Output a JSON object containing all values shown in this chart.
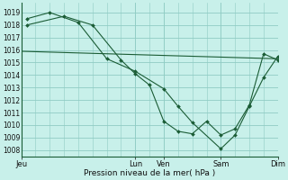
{
  "background_color": "#c8f0ea",
  "grid_color": "#90ccc4",
  "line_color": "#1a5c35",
  "xlabel": "Pression niveau de la mer( hPa )",
  "ylim": [
    1007.5,
    1019.8
  ],
  "yticks": [
    1008,
    1009,
    1010,
    1011,
    1012,
    1013,
    1014,
    1015,
    1016,
    1017,
    1018,
    1019
  ],
  "xtick_labels": [
    "Jeu",
    "Lun",
    "Ven",
    "Sam",
    "Dim"
  ],
  "xtick_positions": [
    0.0,
    4.0,
    5.0,
    7.0,
    9.0
  ],
  "total_x": 9.0,
  "vline_positions": [
    0.0,
    4.0,
    5.0,
    7.0,
    9.0
  ],
  "series": [
    {
      "x": [
        0.0,
        9.0
      ],
      "y": [
        1015.9,
        1015.3
      ]
    },
    {
      "x": [
        0.2,
        1.0,
        2.0,
        3.0,
        4.0,
        5.0,
        5.5,
        6.0,
        7.0,
        7.5,
        8.0,
        8.5,
        9.0
      ],
      "y": [
        1018.5,
        1019.0,
        1018.2,
        1015.3,
        1014.3,
        1012.9,
        1011.5,
        1010.2,
        1008.1,
        1009.2,
        1011.5,
        1013.8,
        1015.5
      ]
    },
    {
      "x": [
        0.2,
        1.5,
        2.5,
        3.5,
        4.0,
        4.5,
        5.0,
        5.5,
        6.0,
        6.5,
        7.0,
        7.5,
        8.0,
        8.5,
        9.0
      ],
      "y": [
        1018.0,
        1018.7,
        1018.0,
        1015.2,
        1014.1,
        1013.2,
        1010.3,
        1009.5,
        1009.3,
        1010.3,
        1009.2,
        1009.7,
        1011.6,
        1015.7,
        1015.2
      ]
    }
  ]
}
